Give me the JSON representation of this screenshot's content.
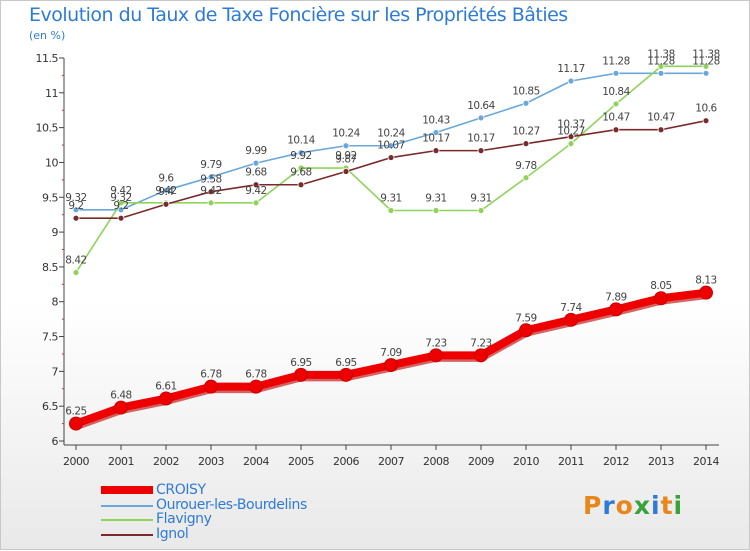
{
  "title": "Evolution du Taux de Taxe Foncière sur les Propriétés Bâties",
  "unit": "(en %)",
  "logo": {
    "text": "Proxiti",
    "letter_colors": [
      "#e8861a",
      "#2e7bd6",
      "#e8861a",
      "#3aa23a",
      "#2e7bd6",
      "#e8861a",
      "#3aa23a"
    ]
  },
  "chart_data": {
    "type": "line",
    "title": "Evolution du Taux de Taxe Foncière sur les Propriétés Bâties",
    "ylabel": "(en %)",
    "xlabel": "",
    "x": [
      2000,
      2001,
      2002,
      2003,
      2004,
      2005,
      2006,
      2007,
      2008,
      2009,
      2010,
      2011,
      2012,
      2013,
      2014
    ],
    "ylim": [
      6,
      11.5
    ],
    "yticks": [
      "6",
      "6.5",
      "7",
      "7.5",
      "8",
      "8.5",
      "9",
      "9.5",
      "10",
      "10.5",
      "11",
      "11.5"
    ],
    "grid": false,
    "legend_position": "bottom-left",
    "series": [
      {
        "name": "CROISY",
        "color": "#ee0000",
        "values": [
          6.25,
          6.48,
          6.61,
          6.78,
          6.78,
          6.95,
          6.95,
          7.09,
          7.23,
          7.23,
          7.59,
          7.74,
          7.89,
          8.05,
          8.13
        ],
        "labels": [
          "6.25",
          "6.48",
          "6.61",
          "6.78",
          "6.78",
          "6.95",
          "6.95",
          "7.09",
          "7.23",
          "7.23",
          "7.59",
          "7.74",
          "7.89",
          "8.05",
          "8.13"
        ]
      },
      {
        "name": "Ourouer-les-Bourdelins",
        "color": "#6aa8dc",
        "values": [
          9.32,
          9.32,
          9.6,
          9.79,
          9.99,
          10.14,
          10.24,
          10.24,
          10.43,
          10.64,
          10.85,
          11.17,
          11.28,
          11.28,
          11.28
        ],
        "labels": [
          "9.32",
          "9.32",
          "9.6",
          "9.79",
          "9.99",
          "10.14",
          "10.24",
          "10.24",
          "10.43",
          "10.64",
          "10.85",
          "11.17",
          "11.28",
          "11.28",
          "11.28"
        ]
      },
      {
        "name": "Flavigny",
        "color": "#8ed45a",
        "values": [
          8.42,
          9.42,
          9.42,
          9.42,
          9.42,
          9.92,
          9.92,
          9.31,
          9.31,
          9.31,
          9.78,
          10.27,
          10.84,
          11.38,
          11.38
        ],
        "labels": [
          "8.42",
          "9.42",
          "9.42",
          "9.42",
          "9.42",
          "9.92",
          "9.92",
          "9.31",
          "9.31",
          "9.31",
          "9.78",
          "10.27",
          "10.84",
          "11.38",
          "11.38"
        ]
      },
      {
        "name": "Ignol",
        "color": "#7a2a2a",
        "values": [
          9.2,
          9.2,
          9.4,
          9.58,
          9.68,
          9.68,
          9.87,
          10.07,
          10.17,
          10.17,
          10.27,
          10.37,
          10.47,
          10.47,
          10.6
        ],
        "labels": [
          "9.2",
          "9.2",
          "9.4",
          "9.58",
          "9.68",
          "9.68",
          "9.87",
          "10.07",
          "10.17",
          "10.17",
          "10.27",
          "10.37",
          "10.47",
          "10.47",
          "10.6"
        ]
      }
    ]
  }
}
